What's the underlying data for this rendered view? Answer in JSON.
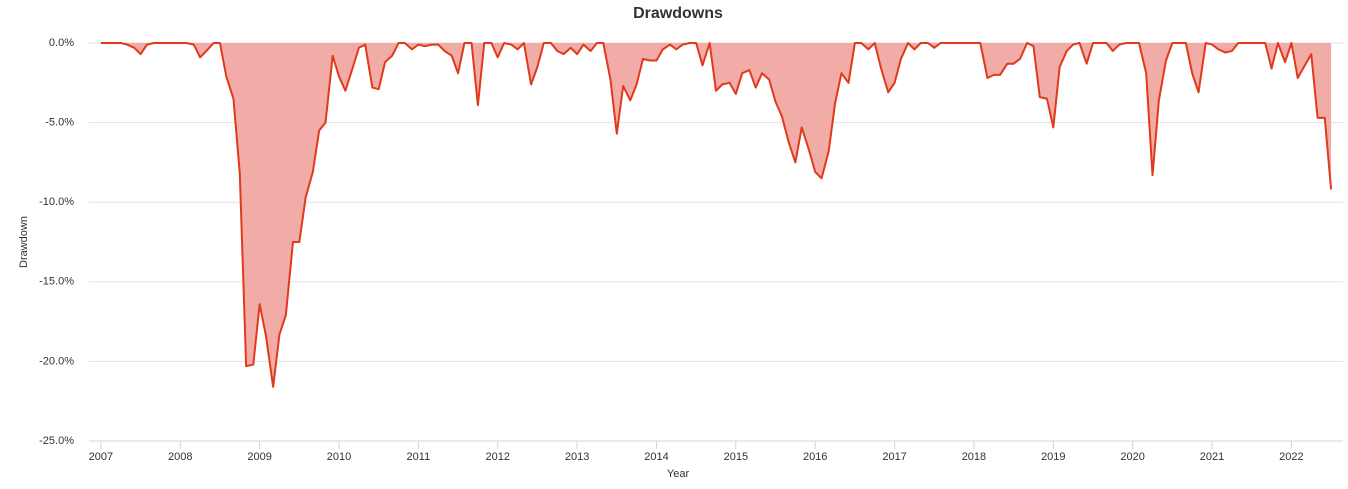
{
  "chart_data": {
    "type": "area",
    "title": "Drawdowns",
    "x_label": "Year",
    "y_label": "Drawdown",
    "line_color": "#e0391b",
    "fill_color": "#f2aca8",
    "x": [
      2007.0,
      2007.08,
      2007.17,
      2007.25,
      2007.33,
      2007.42,
      2007.5,
      2007.58,
      2007.67,
      2007.75,
      2007.83,
      2007.92,
      2008.0,
      2008.08,
      2008.17,
      2008.25,
      2008.33,
      2008.42,
      2008.5,
      2008.58,
      2008.67,
      2008.75,
      2008.83,
      2008.92,
      2009.0,
      2009.08,
      2009.17,
      2009.25,
      2009.33,
      2009.42,
      2009.5,
      2009.58,
      2009.67,
      2009.75,
      2009.83,
      2009.92,
      2010.0,
      2010.08,
      2010.17,
      2010.25,
      2010.33,
      2010.42,
      2010.5,
      2010.58,
      2010.67,
      2010.75,
      2010.83,
      2010.92,
      2011.0,
      2011.08,
      2011.17,
      2011.25,
      2011.33,
      2011.42,
      2011.5,
      2011.58,
      2011.67,
      2011.75,
      2011.83,
      2011.92,
      2012.0,
      2012.08,
      2012.17,
      2012.25,
      2012.33,
      2012.42,
      2012.5,
      2012.58,
      2012.67,
      2012.75,
      2012.83,
      2012.92,
      2013.0,
      2013.08,
      2013.17,
      2013.25,
      2013.33,
      2013.42,
      2013.5,
      2013.58,
      2013.67,
      2013.75,
      2013.83,
      2013.92,
      2014.0,
      2014.08,
      2014.17,
      2014.25,
      2014.33,
      2014.42,
      2014.5,
      2014.58,
      2014.67,
      2014.75,
      2014.83,
      2014.92,
      2015.0,
      2015.08,
      2015.17,
      2015.25,
      2015.33,
      2015.42,
      2015.5,
      2015.58,
      2015.67,
      2015.75,
      2015.83,
      2015.92,
      2016.0,
      2016.08,
      2016.17,
      2016.25,
      2016.33,
      2016.42,
      2016.5,
      2016.58,
      2016.67,
      2016.75,
      2016.83,
      2016.92,
      2017.0,
      2017.08,
      2017.17,
      2017.25,
      2017.33,
      2017.42,
      2017.5,
      2017.58,
      2017.67,
      2017.75,
      2017.83,
      2017.92,
      2018.0,
      2018.08,
      2018.17,
      2018.25,
      2018.33,
      2018.42,
      2018.5,
      2018.58,
      2018.67,
      2018.75,
      2018.83,
      2018.92,
      2019.0,
      2019.08,
      2019.17,
      2019.25,
      2019.33,
      2019.42,
      2019.5,
      2019.58,
      2019.67,
      2019.75,
      2019.83,
      2019.92,
      2020.0,
      2020.08,
      2020.17,
      2020.25,
      2020.33,
      2020.42,
      2020.5,
      2020.58,
      2020.67,
      2020.75,
      2020.83,
      2020.92,
      2021.0,
      2021.08,
      2021.17,
      2021.25,
      2021.33,
      2021.42,
      2021.5,
      2021.58,
      2021.67,
      2021.75,
      2021.83,
      2021.92,
      2022.0,
      2022.08,
      2022.17,
      2022.25,
      2022.33,
      2022.42,
      2022.5
    ],
    "values": [
      0,
      0,
      0,
      0,
      -0.1,
      -0.3,
      -0.7,
      -0.1,
      0,
      0,
      0,
      0,
      0,
      0,
      -0.1,
      -0.9,
      -0.5,
      0,
      0,
      -2.1,
      -3.5,
      -8.2,
      -20.3,
      -20.2,
      -16.4,
      -18.4,
      -21.6,
      -18.3,
      -17.1,
      -12.5,
      -12.5,
      -9.7,
      -8.1,
      -5.5,
      -5.0,
      -0.8,
      -2.1,
      -3.0,
      -1.6,
      -0.3,
      -0.1,
      -2.8,
      -2.9,
      -1.2,
      -0.8,
      0,
      0,
      -0.4,
      -0.1,
      -0.2,
      -0.1,
      -0.1,
      -0.5,
      -0.8,
      -1.9,
      0,
      0,
      -3.9,
      0,
      0,
      -0.9,
      0,
      -0.1,
      -0.4,
      0,
      -2.6,
      -1.5,
      0,
      0,
      -0.5,
      -0.7,
      -0.3,
      -0.7,
      -0.1,
      -0.5,
      0,
      0,
      -2.3,
      -5.7,
      -2.7,
      -3.6,
      -2.6,
      -1.0,
      -1.1,
      -1.1,
      -0.4,
      -0.1,
      -0.4,
      -0.1,
      0,
      0,
      -1.4,
      0,
      -3.0,
      -2.6,
      -2.5,
      -3.2,
      -1.9,
      -1.7,
      -2.8,
      -1.9,
      -2.3,
      -3.7,
      -4.6,
      -6.3,
      -7.5,
      -5.3,
      -6.7,
      -8.1,
      -8.5,
      -6.8,
      -3.8,
      -1.9,
      -2.5,
      0,
      0,
      -0.4,
      0,
      -1.6,
      -3.1,
      -2.5,
      -1.0,
      0,
      -0.4,
      0,
      0,
      -0.3,
      0,
      0,
      0,
      0,
      0,
      0,
      0,
      -2.2,
      -2.0,
      -2.0,
      -1.3,
      -1.3,
      -1.0,
      0,
      -0.2,
      -3.4,
      -3.5,
      -5.3,
      -1.5,
      -0.5,
      -0.1,
      0,
      -1.3,
      0,
      0,
      0,
      -0.5,
      -0.1,
      0,
      0,
      0,
      -1.9,
      -8.3,
      -3.6,
      -1.1,
      0,
      0,
      0,
      -1.9,
      -3.1,
      0,
      -0.1,
      -0.4,
      -0.6,
      -0.5,
      0,
      0,
      0,
      0,
      0,
      -1.6,
      0,
      -1.2,
      0,
      -2.2,
      -1.4,
      -0.7,
      -4.7,
      -4.7,
      -9.2
    ],
    "xlim": [
      2006.85,
      2022.65
    ],
    "xticks": [
      2007,
      2008,
      2009,
      2010,
      2011,
      2012,
      2013,
      2014,
      2015,
      2016,
      2017,
      2018,
      2019,
      2020,
      2021,
      2022
    ],
    "ylim": [
      -25,
      0
    ],
    "yticks": [
      {
        "value": 0,
        "label": "0.0%"
      },
      {
        "value": -5,
        "label": "-5.0%"
      },
      {
        "value": -10,
        "label": "-10.0%"
      },
      {
        "value": -15,
        "label": "-15.0%"
      },
      {
        "value": -20,
        "label": "-20.0%"
      },
      {
        "value": -25,
        "label": "-25.0%"
      }
    ],
    "grid": true
  }
}
